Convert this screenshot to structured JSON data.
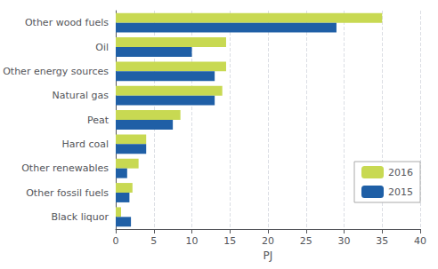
{
  "chart_data": {
    "type": "bar",
    "orientation": "horizontal",
    "categories": [
      "Black liquor",
      "Other fossil fuels",
      "Other renewables",
      "Hard coal",
      "Peat",
      "Natural gas",
      "Other energy sources",
      "Oil",
      "Other wood fuels"
    ],
    "series": [
      {
        "name": "2016",
        "color": "#c8d952",
        "values": [
          0.7,
          2.2,
          3.0,
          4.0,
          8.5,
          14.0,
          14.5,
          14.5,
          35.0
        ]
      },
      {
        "name": "2015",
        "color": "#1f5fa6",
        "values": [
          2.0,
          1.8,
          1.5,
          4.0,
          7.5,
          13.0,
          13.0,
          10.0,
          29.0
        ]
      }
    ],
    "xlabel": "PJ",
    "xlim": [
      0,
      40
    ],
    "xticks": [
      0,
      5,
      10,
      15,
      20,
      25,
      30,
      35,
      40
    ],
    "grid": true,
    "legend": "lower right"
  }
}
